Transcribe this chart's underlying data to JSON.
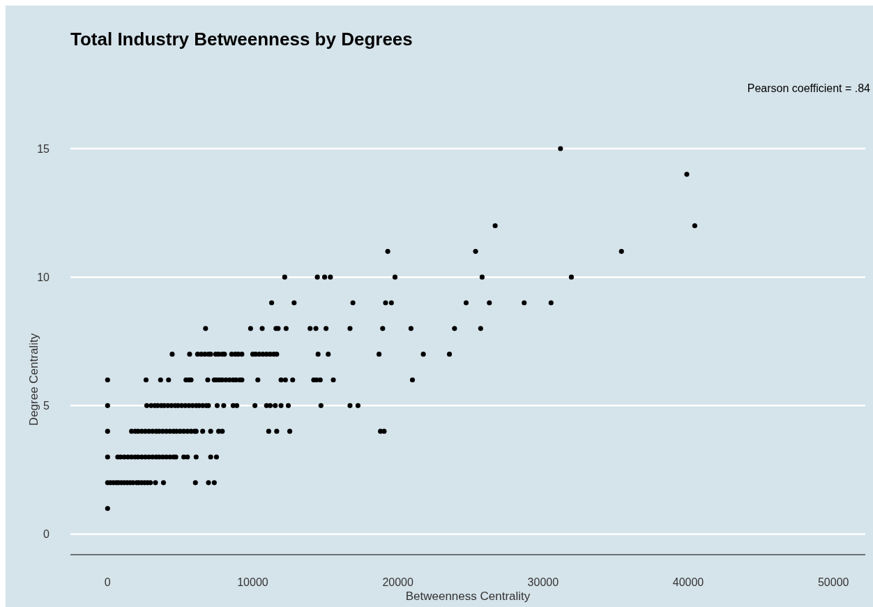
{
  "chart_data": {
    "type": "scatter",
    "title": "Total Industry Betweenness by Degrees",
    "xlabel": "Betweenness Centrality",
    "ylabel": "Degree Centrality",
    "annotations": [
      "Pearson coefficient = .84"
    ],
    "xlim": [
      -2560,
      52200
    ],
    "xticks": [
      0,
      10000,
      20000,
      30000,
      40000,
      50000
    ],
    "ylim": [
      -0.8,
      15
    ],
    "yticks": [
      0,
      5,
      10,
      15
    ],
    "grid": "y",
    "marker": "circle",
    "series": [
      {
        "color": "#000000",
        "x": [
          0,
          0,
          200,
          400,
          600,
          750,
          950,
          1150,
          1350,
          1550,
          1750,
          2000,
          2150,
          2350,
          2550,
          2750,
          2950,
          3300,
          3850,
          6050,
          6950,
          7350,
          0,
          700,
          900,
          1150,
          1400,
          1650,
          1900,
          2100,
          2350,
          2600,
          2850,
          3100,
          3350,
          3550,
          3800,
          4050,
          4300,
          4550,
          4700,
          5250,
          5500,
          6100,
          7100,
          7500,
          0,
          1650,
          1900,
          2100,
          2350,
          2600,
          2850,
          3100,
          3350,
          3550,
          3800,
          4050,
          4300,
          4550,
          4750,
          5000,
          5250,
          5500,
          5750,
          6000,
          6100,
          6550,
          7100,
          7650,
          7900,
          11100,
          11650,
          12550,
          18800,
          19050,
          0,
          2700,
          3000,
          3250,
          3450,
          3700,
          3900,
          4150,
          4400,
          4650,
          4850,
          5100,
          5350,
          5600,
          5850,
          6100,
          6300,
          6550,
          6800,
          6950,
          7550,
          8000,
          8650,
          8900,
          10150,
          10950,
          11200,
          11550,
          11950,
          12450,
          14700,
          16700,
          17250,
          0,
          2650,
          3650,
          4200,
          5400,
          5600,
          5750,
          6900,
          7350,
          7500,
          7700,
          7900,
          8150,
          8400,
          8650,
          8850,
          9100,
          9250,
          10350,
          11950,
          12250,
          12750,
          14200,
          14400,
          14650,
          15550,
          21000,
          4450,
          5650,
          6200,
          6450,
          6700,
          6950,
          7100,
          7450,
          7650,
          7900,
          8050,
          8550,
          8800,
          9000,
          9250,
          10000,
          10200,
          10450,
          10700,
          10950,
          11200,
          11450,
          11650,
          14500,
          15200,
          18700,
          21750,
          23550,
          6750,
          9850,
          10650,
          11600,
          11750,
          12300,
          13950,
          14350,
          15050,
          16700,
          18950,
          20900,
          23900,
          25700,
          11300,
          12850,
          16900,
          19150,
          19550,
          24700,
          26300,
          28700,
          30550,
          12200,
          14450,
          14950,
          15350,
          19800,
          25800,
          31950,
          19300,
          25350,
          35400,
          26700,
          40450,
          39900,
          31200
        ],
        "values": [
          1,
          2,
          2,
          2,
          2,
          2,
          2,
          2,
          2,
          2,
          2,
          2,
          2,
          2,
          2,
          2,
          2,
          2,
          2,
          2,
          2,
          2,
          3,
          3,
          3,
          3,
          3,
          3,
          3,
          3,
          3,
          3,
          3,
          3,
          3,
          3,
          3,
          3,
          3,
          3,
          3,
          3,
          3,
          3,
          3,
          3,
          4,
          4,
          4,
          4,
          4,
          4,
          4,
          4,
          4,
          4,
          4,
          4,
          4,
          4,
          4,
          4,
          4,
          4,
          4,
          4,
          4,
          4,
          4,
          4,
          4,
          4,
          4,
          4,
          4,
          4,
          5,
          5,
          5,
          5,
          5,
          5,
          5,
          5,
          5,
          5,
          5,
          5,
          5,
          5,
          5,
          5,
          5,
          5,
          5,
          5,
          5,
          5,
          5,
          5,
          5,
          5,
          5,
          5,
          5,
          5,
          5,
          5,
          5,
          6,
          6,
          6,
          6,
          6,
          6,
          6,
          6,
          6,
          6,
          6,
          6,
          6,
          6,
          6,
          6,
          6,
          6,
          6,
          6,
          6,
          6,
          6,
          6,
          6,
          6,
          6,
          7,
          7,
          7,
          7,
          7,
          7,
          7,
          7,
          7,
          7,
          7,
          7,
          7,
          7,
          7,
          7,
          7,
          7,
          7,
          7,
          7,
          7,
          7,
          7,
          7,
          7,
          7,
          7,
          8,
          8,
          8,
          8,
          8,
          8,
          8,
          8,
          8,
          8,
          8,
          8,
          8,
          8,
          9,
          9,
          9,
          9,
          9,
          9,
          9,
          9,
          9,
          10,
          10,
          10,
          10,
          10,
          10,
          10,
          11,
          11,
          11,
          12,
          12,
          14,
          15
        ]
      }
    ]
  }
}
